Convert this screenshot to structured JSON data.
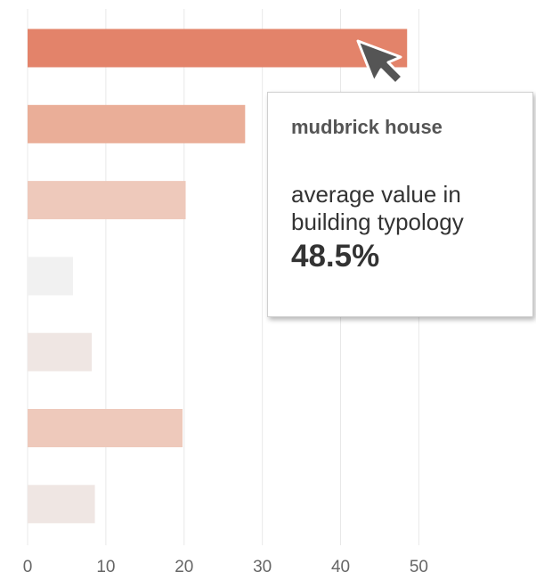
{
  "chart_data": {
    "type": "bar",
    "orientation": "horizontal",
    "categories": [
      "mudbrick house",
      "",
      "",
      "",
      "",
      "",
      ""
    ],
    "values": [
      48.5,
      27.8,
      20.2,
      5.8,
      8.2,
      19.8,
      8.6
    ],
    "bar_colors": [
      "#e3836a",
      "#eaae98",
      "#eec9bb",
      "#f1f1f1",
      "#efe6e3",
      "#eec9bb",
      "#efe6e3"
    ],
    "xlim": [
      0,
      52
    ],
    "x_ticks": [
      0,
      10,
      20,
      30,
      40,
      50
    ],
    "grid": true,
    "title": "",
    "xlabel": "",
    "ylabel": ""
  },
  "tooltip": {
    "title": "mudbrick house",
    "label": "average value in building typology",
    "value": "48.5%"
  },
  "cursor": {
    "icon": "arrow-cursor-icon"
  },
  "colors": {
    "grid": "#e8e8e8",
    "axis_text": "#666666",
    "cursor": "#555555"
  }
}
